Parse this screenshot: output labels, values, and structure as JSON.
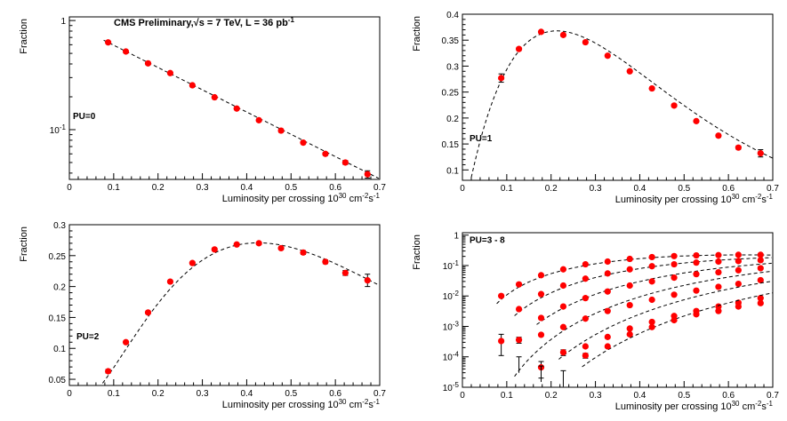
{
  "chart_data": [
    {
      "panel": "top-left",
      "type": "scatter",
      "log_y": true,
      "title": "CMS Preliminary,",
      "title_sqrt": "√s = 7 TeV, L = 36 pb",
      "title_exp": "-1",
      "annotation": "PU=0",
      "ylabel": "Fraction",
      "xlabel": "Luminosity per crossing 10",
      "xlabel_exp1": "30",
      "xlabel_unit": " cm",
      "xlabel_exp2": "-2",
      "xlabel_unit2": "s",
      "xlabel_exp3": "-1",
      "xlim": [
        0,
        0.7
      ],
      "ylim": [
        0.035,
        1.08
      ],
      "x_ticks": [
        "0",
        "0.1",
        "0.2",
        "0.3",
        "0.4",
        "0.5",
        "0.6",
        "0.7"
      ],
      "y_ticks": [
        {
          "value": 1,
          "label": "1"
        },
        {
          "value": 0.1,
          "label": "10",
          "exp": "-1"
        }
      ],
      "series": [
        {
          "name": "PU=0",
          "x": [
            0.0875,
            0.1275,
            0.1775,
            0.2275,
            0.2775,
            0.3275,
            0.3775,
            0.4275,
            0.4775,
            0.5275,
            0.5775,
            0.6225,
            0.6725
          ],
          "y": [
            0.63,
            0.52,
            0.405,
            0.33,
            0.255,
            0.198,
            0.156,
            0.122,
            0.098,
            0.076,
            0.06,
            0.05,
            0.039
          ],
          "err": [
            0.01,
            0.008,
            0.007,
            0.006,
            0.005,
            0.004,
            0.003,
            0.003,
            0.003,
            0.002,
            0.002,
            0.002,
            0.003
          ],
          "fit": {
            "kind": "exp",
            "a": 0.95,
            "b": 4.7
          }
        }
      ]
    },
    {
      "panel": "top-right",
      "type": "scatter",
      "log_y": false,
      "annotation": "PU=1",
      "ylabel": "Fraction",
      "xlabel": "Luminosity per crossing 10",
      "xlabel_exp1": "30",
      "xlabel_unit": " cm",
      "xlabel_exp2": "-2",
      "xlabel_unit2": "s",
      "xlabel_exp3": "-1",
      "xlim": [
        0,
        0.7
      ],
      "ylim": [
        0.08,
        0.4
      ],
      "x_ticks": [
        "0",
        "0.1",
        "0.2",
        "0.3",
        "0.4",
        "0.5",
        "0.6",
        "0.7"
      ],
      "y_ticks": [
        "0.1",
        "0.15",
        "0.2",
        "0.25",
        "0.3",
        "0.35",
        "0.4"
      ],
      "series": [
        {
          "name": "PU=1",
          "x": [
            0.0875,
            0.1275,
            0.1775,
            0.2275,
            0.2775,
            0.3275,
            0.3775,
            0.4275,
            0.4775,
            0.5275,
            0.5775,
            0.6225,
            0.6725
          ],
          "y": [
            0.277,
            0.333,
            0.366,
            0.36,
            0.346,
            0.32,
            0.29,
            0.257,
            0.224,
            0.194,
            0.166,
            0.143,
            0.132
          ],
          "err": [
            0.008,
            0.003,
            0.002,
            0.002,
            0.002,
            0.002,
            0.002,
            0.002,
            0.002,
            0.002,
            0.003,
            0.003,
            0.007
          ],
          "fit": {
            "kind": "poisson",
            "n": 1,
            "k": 4.7
          }
        }
      ]
    },
    {
      "panel": "bottom-left",
      "type": "scatter",
      "log_y": false,
      "annotation": "PU=2",
      "ylabel": "Fraction",
      "xlabel": "Luminosity per crossing 10",
      "xlabel_exp1": "30",
      "xlabel_unit": " cm",
      "xlabel_exp2": "-2",
      "xlabel_unit2": "s",
      "xlabel_exp3": "-1",
      "xlim": [
        0,
        0.7
      ],
      "ylim": [
        0.04,
        0.3
      ],
      "x_ticks": [
        "0",
        "0.1",
        "0.2",
        "0.3",
        "0.4",
        "0.5",
        "0.6",
        "0.7"
      ],
      "y_ticks": [
        "0.05",
        "0.1",
        "0.15",
        "0.2",
        "0.25",
        "0.3"
      ],
      "series": [
        {
          "name": "PU=2",
          "x": [
            0.0875,
            0.1275,
            0.1775,
            0.2275,
            0.2775,
            0.3275,
            0.3775,
            0.4275,
            0.4775,
            0.5275,
            0.5775,
            0.6225,
            0.6725
          ],
          "y": [
            0.063,
            0.11,
            0.158,
            0.208,
            0.238,
            0.26,
            0.268,
            0.27,
            0.262,
            0.255,
            0.24,
            0.222,
            0.21
          ],
          "err": [
            0.003,
            0.002,
            0.002,
            0.002,
            0.002,
            0.002,
            0.002,
            0.002,
            0.002,
            0.003,
            0.003,
            0.004,
            0.01
          ],
          "fit": {
            "kind": "poisson",
            "n": 2,
            "k": 4.7
          }
        }
      ]
    },
    {
      "panel": "bottom-right",
      "type": "scatter",
      "log_y": true,
      "annotation": "PU=3 - 8",
      "ylabel": "Fraction",
      "xlabel": "Luminosity per crossing 10",
      "xlabel_exp1": "30",
      "xlabel_unit": " cm",
      "xlabel_exp2": "-2",
      "xlabel_unit2": "s",
      "xlabel_exp3": "-1",
      "xlim": [
        0,
        0.7
      ],
      "ylim": [
        1e-05,
        1.2
      ],
      "x_ticks": [
        "0",
        "0.1",
        "0.2",
        "0.3",
        "0.4",
        "0.5",
        "0.6",
        "0.7"
      ],
      "y_ticks": [
        {
          "value": 1,
          "label": "1"
        },
        {
          "value": 0.1,
          "label": "10",
          "exp": "-1"
        },
        {
          "value": 0.01,
          "label": "10",
          "exp": "-2"
        },
        {
          "value": 0.001,
          "label": "10",
          "exp": "-3"
        },
        {
          "value": 0.0001,
          "label": "10",
          "exp": "-4"
        },
        {
          "value": 1e-05,
          "label": "10",
          "exp": "-5"
        }
      ],
      "series": [
        {
          "name": "PU=3",
          "x": [
            0.0875,
            0.1275,
            0.1775,
            0.2275,
            0.2775,
            0.3275,
            0.3775,
            0.4275,
            0.4775,
            0.5275,
            0.5775,
            0.6225,
            0.6725
          ],
          "y": [
            0.01,
            0.024,
            0.048,
            0.075,
            0.11,
            0.135,
            0.165,
            0.19,
            0.205,
            0.215,
            0.22,
            0.225,
            0.225
          ],
          "err": [
            0,
            0,
            0,
            0,
            0,
            0,
            0,
            0,
            0,
            0,
            0,
            0,
            0
          ],
          "fit": {
            "kind": "poisson",
            "n": 3,
            "k": 4.7
          }
        },
        {
          "name": "PU=4",
          "x": [
            0.1275,
            0.1775,
            0.2275,
            0.2775,
            0.3275,
            0.3775,
            0.4275,
            0.4775,
            0.5275,
            0.5775,
            0.6225,
            0.6725
          ],
          "y": [
            0.0037,
            0.0115,
            0.022,
            0.037,
            0.055,
            0.075,
            0.095,
            0.11,
            0.125,
            0.135,
            0.14,
            0.15
          ],
          "err": [
            0,
            0,
            0,
            0,
            0,
            0,
            0,
            0,
            0,
            0,
            0,
            0
          ],
          "fit": {
            "kind": "poisson",
            "n": 4,
            "k": 4.7
          }
        },
        {
          "name": "PU=5",
          "x": [
            0.1775,
            0.2275,
            0.2775,
            0.3275,
            0.3775,
            0.4275,
            0.4775,
            0.5275,
            0.5775,
            0.6225,
            0.6725
          ],
          "y": [
            0.0019,
            0.0045,
            0.0085,
            0.014,
            0.022,
            0.03,
            0.04,
            0.052,
            0.06,
            0.07,
            0.082
          ],
          "err": [
            0,
            0,
            0,
            0,
            0,
            0,
            0,
            0,
            0,
            0,
            0
          ],
          "fit": {
            "kind": "poisson",
            "n": 5,
            "k": 4.7
          }
        },
        {
          "name": "PU=6",
          "x": [
            0.1275,
            0.1775,
            0.2275,
            0.2775,
            0.3275,
            0.3775,
            0.4275,
            0.4775,
            0.5275,
            0.5775,
            0.6225,
            0.6725
          ],
          "y": [
            0.00036,
            0.00053,
            0.00095,
            0.0018,
            0.0032,
            0.005,
            0.0075,
            0.011,
            0.015,
            0.02,
            0.025,
            0.033
          ],
          "err": [
            8e-05,
            0,
            0,
            0,
            0,
            0,
            0,
            0,
            0,
            0,
            0,
            0
          ],
          "fit": {
            "kind": "poisson",
            "n": 6,
            "k": 4.7
          }
        },
        {
          "name": "PU=7",
          "x": [
            0.2275,
            0.2775,
            0.3275,
            0.3775,
            0.4275,
            0.4775,
            0.5275,
            0.5775,
            0.6225,
            0.6725
          ],
          "y": [
            0.00014,
            0.00022,
            0.00045,
            0.00085,
            0.0014,
            0.0022,
            0.0032,
            0.0045,
            0.006,
            0.0085
          ],
          "err": [
            3e-05,
            0,
            0,
            0,
            0,
            0,
            0,
            0,
            0,
            0
          ],
          "fit": {
            "kind": "poisson",
            "n": 7,
            "k": 4.7
          }
        },
        {
          "name": "PU=8",
          "x": [
            0.0875,
            0.1775,
            0.2775,
            0.3275,
            0.3775,
            0.4275,
            0.4775,
            0.5275,
            0.5775,
            0.6225,
            0.6725
          ],
          "y": [
            0.00033,
            4.5e-05,
            0.00011,
            0.00022,
            0.00055,
            0.00095,
            0.0016,
            0.0025,
            0.0032,
            0.0045,
            0.0058
          ],
          "err": [
            0.00022,
            2.5e-05,
            2e-05,
            0,
            0,
            0,
            0,
            0,
            0,
            0,
            0
          ],
          "fit": {
            "kind": "poisson",
            "n": 8,
            "k": 4.7,
            "from": 0.27
          }
        }
      ],
      "upper_limits": [
        {
          "x": 0.1275,
          "y": 0.0001
        },
        {
          "x": 0.1775,
          "y": 5e-05
        },
        {
          "x": 0.2275,
          "y": 3.5e-05
        }
      ]
    }
  ]
}
